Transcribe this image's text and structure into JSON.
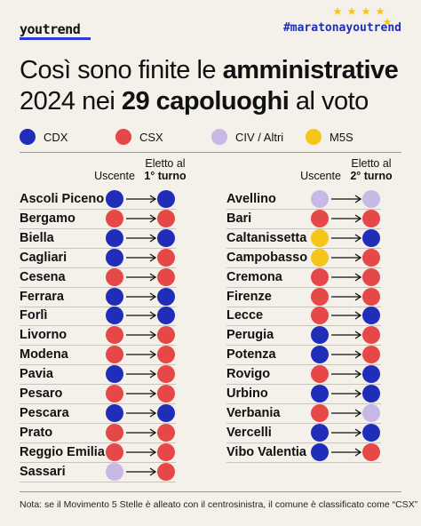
{
  "header": {
    "logo": "youtrend",
    "hashtag": "#maratonayoutrend"
  },
  "title": {
    "line1_pre": "Così sono finite le ",
    "line1_bold": "amministrative",
    "line2_pre": "2024 nei ",
    "line2_bold": "29 capoluoghi",
    "line2_post": " al voto"
  },
  "colors": {
    "CDX": "#1f2db8",
    "CSX": "#e64848",
    "CIV": "#c8b8e6",
    "M5S": "#f5c518"
  },
  "legend": [
    {
      "key": "CDX",
      "label": "CDX"
    },
    {
      "key": "CSX",
      "label": "CSX"
    },
    {
      "key": "CIV",
      "label": "CIV / Altri"
    },
    {
      "key": "M5S",
      "label": "M5S"
    }
  ],
  "left_table": {
    "header_uscente": "Uscente",
    "header_eletto": "Eletto al",
    "header_turno": "1° turno",
    "rows": [
      {
        "city": "Ascoli Piceno",
        "from": "CDX",
        "to": "CDX"
      },
      {
        "city": "Bergamo",
        "from": "CSX",
        "to": "CSX"
      },
      {
        "city": "Biella",
        "from": "CDX",
        "to": "CDX"
      },
      {
        "city": "Cagliari",
        "from": "CDX",
        "to": "CSX"
      },
      {
        "city": "Cesena",
        "from": "CSX",
        "to": "CSX"
      },
      {
        "city": "Ferrara",
        "from": "CDX",
        "to": "CDX"
      },
      {
        "city": "Forlì",
        "from": "CDX",
        "to": "CDX"
      },
      {
        "city": "Livorno",
        "from": "CSX",
        "to": "CSX"
      },
      {
        "city": "Modena",
        "from": "CSX",
        "to": "CSX"
      },
      {
        "city": "Pavia",
        "from": "CDX",
        "to": "CSX"
      },
      {
        "city": "Pesaro",
        "from": "CSX",
        "to": "CSX"
      },
      {
        "city": "Pescara",
        "from": "CDX",
        "to": "CDX"
      },
      {
        "city": "Prato",
        "from": "CSX",
        "to": "CSX"
      },
      {
        "city": "Reggio Emilia",
        "from": "CSX",
        "to": "CSX"
      },
      {
        "city": "Sassari",
        "from": "CIV",
        "to": "CSX"
      }
    ]
  },
  "right_table": {
    "header_uscente": "Uscente",
    "header_eletto": "Eletto al",
    "header_turno": "2° turno",
    "rows": [
      {
        "city": "Avellino",
        "from": "CIV",
        "to": "CIV"
      },
      {
        "city": "Bari",
        "from": "CSX",
        "to": "CSX"
      },
      {
        "city": "Caltanissetta",
        "from": "M5S",
        "to": "CDX"
      },
      {
        "city": "Campobasso",
        "from": "M5S",
        "to": "CSX"
      },
      {
        "city": "Cremona",
        "from": "CSX",
        "to": "CSX"
      },
      {
        "city": "Firenze",
        "from": "CSX",
        "to": "CSX"
      },
      {
        "city": "Lecce",
        "from": "CSX",
        "to": "CDX"
      },
      {
        "city": "Perugia",
        "from": "CDX",
        "to": "CSX"
      },
      {
        "city": "Potenza",
        "from": "CDX",
        "to": "CSX"
      },
      {
        "city": "Rovigo",
        "from": "CSX",
        "to": "CDX"
      },
      {
        "city": "Urbino",
        "from": "CDX",
        "to": "CDX"
      },
      {
        "city": "Verbania",
        "from": "CSX",
        "to": "CIV"
      },
      {
        "city": "Vercelli",
        "from": "CDX",
        "to": "CDX"
      },
      {
        "city": "Vibo Valentia",
        "from": "CDX",
        "to": "CSX"
      }
    ]
  },
  "note": "Nota: se il Movimento 5 Stelle è alleato con il centrosinistra, il comune è classificato come “CSX”"
}
